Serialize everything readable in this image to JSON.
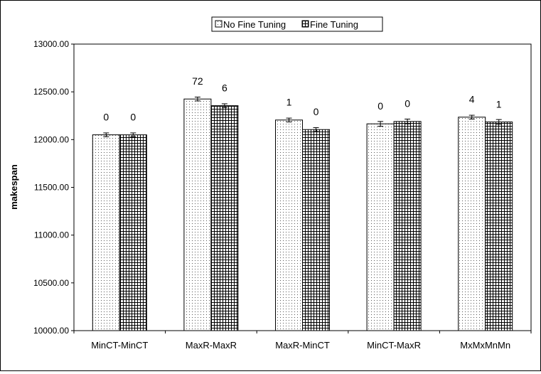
{
  "chart_data": {
    "type": "bar",
    "title": "",
    "xlabel": "",
    "ylabel": "makespan",
    "ylim": [
      10000,
      13000
    ],
    "ytick_labels": [
      "10000.00",
      "10500.00",
      "11000.00",
      "11500.00",
      "12000.00",
      "12500.00",
      "13000.00"
    ],
    "grid": false,
    "legend_position": "top-center",
    "categories": [
      "MinCT-MinCT",
      "MaxR-MaxR",
      "MaxR-MinCT",
      "MinCT-MaxR",
      "MxMxMnMn"
    ],
    "series": [
      {
        "name": "No Fine Tuning",
        "pattern": "dots",
        "values": [
          12050,
          12425,
          12205,
          12165,
          12235
        ],
        "error": [
          20,
          20,
          20,
          25,
          20
        ],
        "labels": [
          "0",
          "72",
          "1",
          "0",
          "4"
        ]
      },
      {
        "name": "Fine Tuning",
        "pattern": "grid",
        "values": [
          12050,
          12355,
          12105,
          12190,
          12185
        ],
        "error": [
          20,
          20,
          20,
          25,
          25
        ],
        "labels": [
          "0",
          "6",
          "0",
          "0",
          "1"
        ]
      }
    ]
  }
}
